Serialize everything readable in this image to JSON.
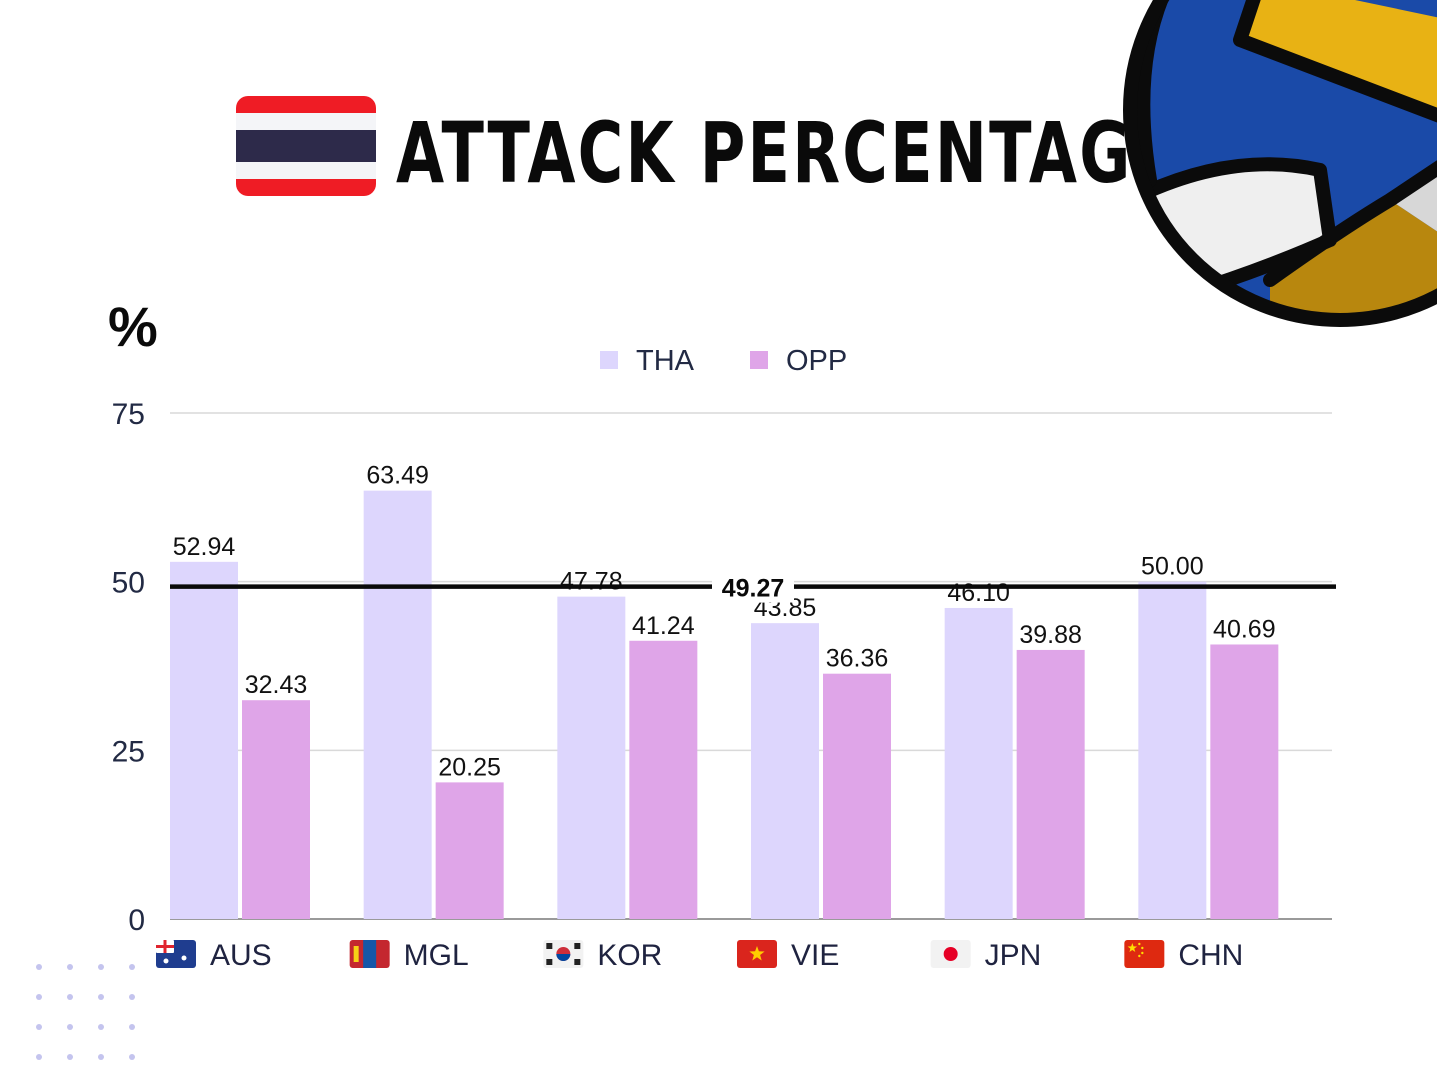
{
  "header": {
    "title": "ATTACK PERCENTAGE",
    "flag": {
      "country": "Thailand",
      "stripes": [
        "#ef1c25",
        "#f4f5f8",
        "#2d2a4a",
        "#f4f5f8",
        "#ef1c25"
      ]
    },
    "decoration": "volleyball-icon"
  },
  "chart_data": {
    "type": "bar",
    "ylabel": "%",
    "ylim": [
      0,
      75
    ],
    "yticks": [
      "0",
      "25",
      "50",
      "75"
    ],
    "grid": true,
    "legend_position": "top-center",
    "categories": [
      "AUS",
      "MGL",
      "KOR",
      "VIE",
      "JPN",
      "CHN"
    ],
    "category_flags": [
      "australia-flag-icon",
      "mongolia-flag-icon",
      "south-korea-flag-icon",
      "vietnam-flag-icon",
      "japan-flag-icon",
      "china-flag-icon"
    ],
    "series": [
      {
        "name": "THA",
        "color": "#ddd6fd",
        "values": [
          52.94,
          63.49,
          47.78,
          43.85,
          46.1,
          50.0
        ],
        "labels": [
          "52.94",
          "63.49",
          "47.78",
          "43.85",
          "46.10",
          "50.00"
        ]
      },
      {
        "name": "OPP",
        "color": "#dfa5e8",
        "values": [
          32.43,
          20.25,
          41.24,
          36.36,
          39.88,
          40.69
        ],
        "labels": [
          "32.43",
          "20.25",
          "41.24",
          "36.36",
          "39.88",
          "40.69"
        ]
      }
    ],
    "reference_line": {
      "value": 49.27,
      "label": "49.27"
    }
  }
}
